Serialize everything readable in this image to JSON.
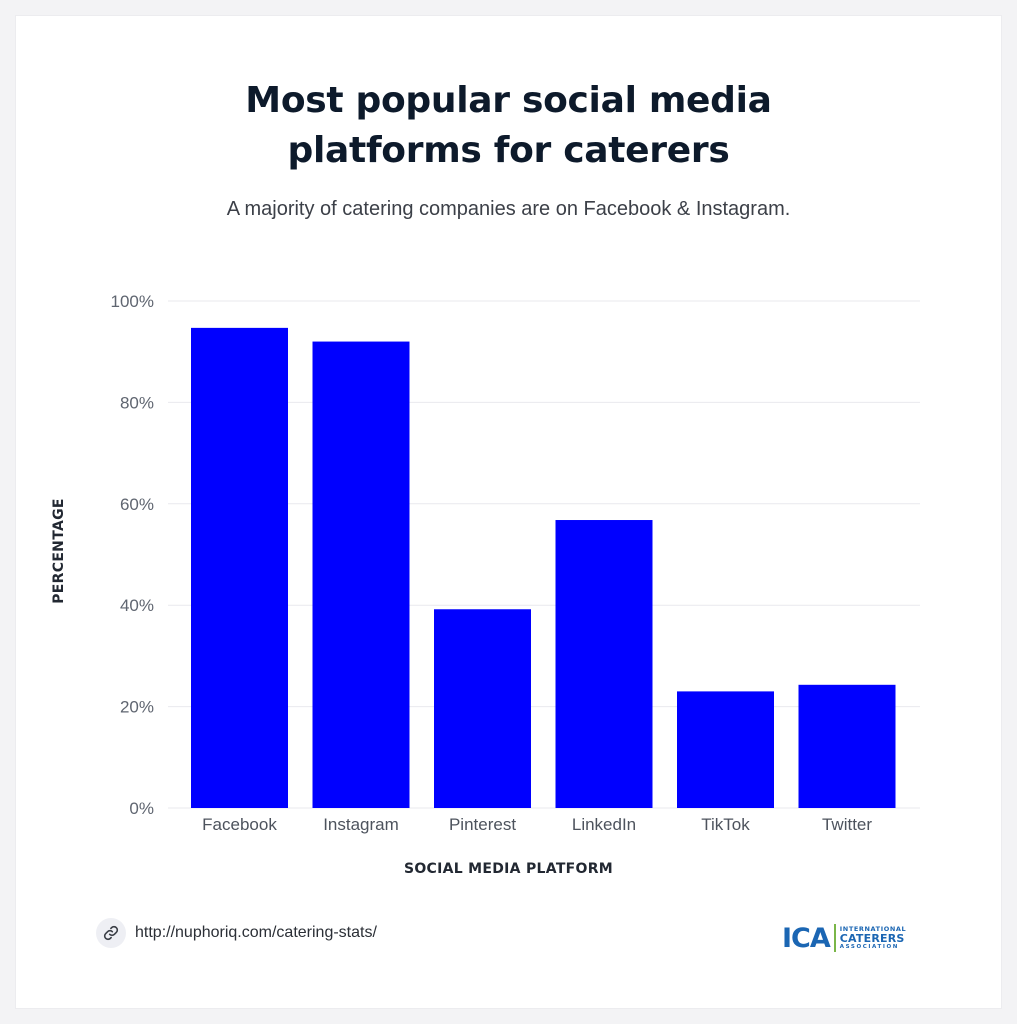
{
  "header": {
    "title_line1": "Most popular social media",
    "title_line2": "platforms for caterers",
    "subtitle": "A majority of catering companies are on Facebook & Instagram."
  },
  "chart_data": {
    "type": "bar",
    "title": "Most popular social media platforms for caterers",
    "subtitle": "A majority of catering companies are on Facebook & Instagram.",
    "xlabel": "SOCIAL MEDIA PLATFORM",
    "ylabel": "PERCENTAGE",
    "categories": [
      "Facebook",
      "Instagram",
      "Pinterest",
      "LinkedIn",
      "TikTok",
      "Twitter"
    ],
    "values": [
      94.7,
      92,
      39.2,
      56.8,
      23,
      24.3
    ],
    "ylim": [
      0,
      100
    ],
    "yticks": [
      0,
      20,
      40,
      60,
      80,
      100
    ],
    "ytick_labels": [
      "0%",
      "20%",
      "40%",
      "60%",
      "80%",
      "100%"
    ],
    "grid": true,
    "bar_color": "#0000ff",
    "grid_color": "#e9e9ee"
  },
  "footer": {
    "link_icon": "link-icon",
    "url": "http://nuphoriq.com/catering-stats/",
    "logo": {
      "mark": "ICA",
      "line1": "INTERNATIONAL",
      "line2": "CATERERS",
      "line3": "ASSOCIATION",
      "brand_color": "#1b66b3",
      "accent_color": "#7ab648"
    }
  }
}
